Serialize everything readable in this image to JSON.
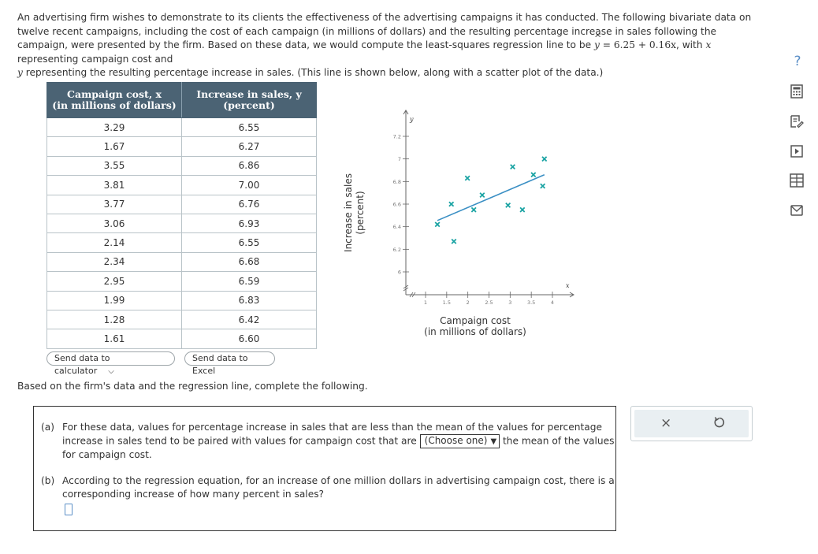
{
  "intro": {
    "p1": "An advertising firm wishes to demonstrate to its clients the effectiveness of the advertising campaigns it has conducted. The following bivariate data on twelve recent campaigns, including the cost of each campaign (in millions of dollars) and the resulting percentage increase in sales following the campaign, were presented by the firm. Based on these data, we would compute the least-squares regression line to be",
    "y": "y",
    "eq": " = 6.25 + 0.16x",
    "p2": ", with",
    "x": "x",
    "p3": "representing campaign cost and",
    "p4": "representing the resulting percentage increase in sales. (This line is shown below, along with a scatter plot of the data.)"
  },
  "table": {
    "header_x_1": "Campaign cost, x",
    "header_x_2": "(in millions of dollars)",
    "header_y_1": "Increase in sales, y",
    "header_y_2": "(percent)",
    "rows": [
      [
        "3.29",
        "6.55"
      ],
      [
        "1.67",
        "6.27"
      ],
      [
        "3.55",
        "6.86"
      ],
      [
        "3.81",
        "7.00"
      ],
      [
        "3.77",
        "6.76"
      ],
      [
        "3.06",
        "6.93"
      ],
      [
        "2.14",
        "6.55"
      ],
      [
        "2.34",
        "6.68"
      ],
      [
        "2.95",
        "6.59"
      ],
      [
        "1.99",
        "6.83"
      ],
      [
        "1.28",
        "6.42"
      ],
      [
        "1.61",
        "6.60"
      ]
    ]
  },
  "buttons": {
    "calculator": "Send data to calculator",
    "excel": "Send data to Excel"
  },
  "based_text": "Based on the firm's data and the regression line, complete the following.",
  "chart_data": {
    "type": "scatter",
    "xlabel": "Campaign cost",
    "xlabel2": "(in millions of dollars)",
    "ylabel": "Increase in sales",
    "ylabel2": "(percent)",
    "x_axis_symbol": "x",
    "y_axis_symbol": "y",
    "x_ticks": [
      "1",
      "1.5",
      "2",
      "2.5",
      "3",
      "3.5",
      "4"
    ],
    "y_ticks": [
      "6",
      "6.2",
      "6.4",
      "6.6",
      "6.8",
      "7",
      "7.2"
    ],
    "xlim": [
      1,
      4
    ],
    "ylim": [
      6,
      7.2
    ],
    "axis_break": true,
    "points": [
      [
        3.29,
        6.55
      ],
      [
        1.67,
        6.27
      ],
      [
        3.55,
        6.86
      ],
      [
        3.81,
        7.0
      ],
      [
        3.77,
        6.76
      ],
      [
        3.06,
        6.93
      ],
      [
        2.14,
        6.55
      ],
      [
        2.34,
        6.68
      ],
      [
        2.95,
        6.59
      ],
      [
        1.99,
        6.83
      ],
      [
        1.28,
        6.42
      ],
      [
        1.61,
        6.6
      ]
    ],
    "regression": {
      "intercept": 6.25,
      "slope": 0.16,
      "x_range": [
        1.28,
        3.81
      ]
    },
    "colors": {
      "marker": "#1aa3a3",
      "line": "#3a8fc4",
      "axis": "#666666"
    }
  },
  "question": {
    "a_label": "(a)",
    "a_text1": "For these data, values for percentage increase in sales that are less than the mean of the values for percentage increase in sales tend to be paired with values for campaign cost that are",
    "a_select": "(Choose one)",
    "a_text2": "the mean of the values for campaign cost.",
    "b_label": "(b)",
    "b_text": "According to the regression equation, for an increase of one million dollars in advertising campaign cost, there is a corresponding increase of how many percent in sales?"
  },
  "actions": {
    "clear": "×"
  },
  "sidebar": {
    "help": "?",
    "icons": [
      "calculator-icon",
      "notes-icon",
      "video-icon",
      "table-icon",
      "mail-icon"
    ]
  }
}
